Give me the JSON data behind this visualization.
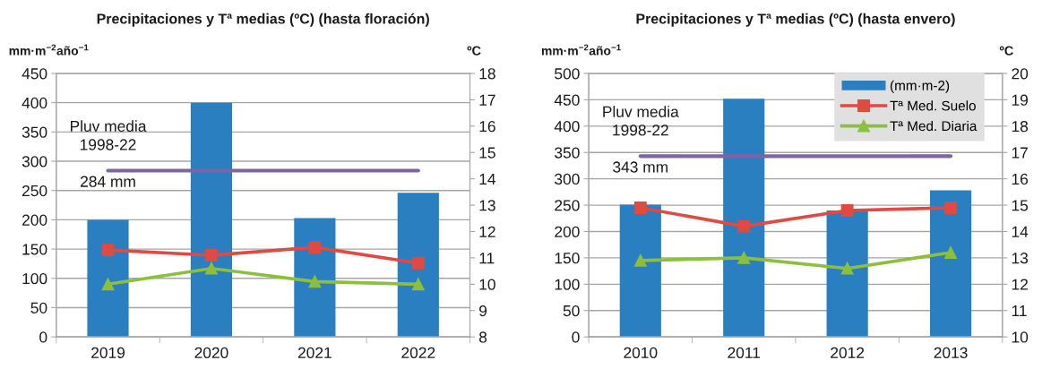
{
  "chart_data": [
    {
      "type": "bar",
      "title": "Precipitaciones y Tª medias (ºC) (hasta floración)",
      "ylabel": "mm·m$^{−2}$año$^{−1}$",
      "y2label": "ºC",
      "categories": [
        "2019",
        "2020",
        "2021",
        "2022"
      ],
      "series": [
        {
          "color": "#2a7fc1",
          "values": [
            200,
            400,
            203,
            246
          ]
        },
        {
          "type": "line",
          "axis": "y2",
          "marker": "square",
          "color": "#df4a43",
          "values": [
            11.3,
            11.1,
            11.4,
            10.8
          ]
        },
        {
          "type": "line",
          "axis": "y2",
          "marker": "triangle",
          "color": "#8cbf3e",
          "values": [
            10.0,
            10.6,
            10.1,
            10.0
          ]
        }
      ],
      "ylim": [
        0,
        450
      ],
      "yticks": [
        0,
        50,
        100,
        150,
        200,
        250,
        300,
        350,
        400,
        450
      ],
      "y2lim": [
        8,
        18
      ],
      "y2ticks": [
        8,
        9,
        10,
        11,
        12,
        13,
        14,
        15,
        16,
        17,
        18
      ],
      "ref_lines": [
        {
          "axis": "y",
          "value": 284,
          "label": "284 mm",
          "color": "#8064a2"
        }
      ],
      "annotations": [
        {
          "text": "Pluv media\n1998-22",
          "x": "2019",
          "y": 284
        }
      ],
      "grid": "y",
      "legend": false
    },
    {
      "type": "bar",
      "title": "Precipitaciones y Tª medias (ºC) (hasta envero)",
      "ylabel": "mm·m$^{−2}$año$^{−1}$",
      "y2label": "ºC",
      "categories": [
        "2010",
        "2011",
        "2012",
        "2013"
      ],
      "series": [
        {
          "name": "(mm·m-2)",
          "color": "#2a7fc1",
          "values": [
            251,
            452,
            240,
            278
          ]
        },
        {
          "type": "line",
          "axis": "y2",
          "marker": "square",
          "name": "Tª Med. Suelo",
          "color": "#df4a43",
          "values": [
            14.9,
            14.2,
            14.8,
            14.9
          ]
        },
        {
          "type": "line",
          "axis": "y2",
          "marker": "triangle",
          "name": "Tª Med. Diaria",
          "color": "#8cbf3e",
          "values": [
            12.9,
            13.0,
            12.6,
            13.2
          ]
        }
      ],
      "ylim": [
        0,
        500
      ],
      "yticks": [
        0,
        50,
        100,
        150,
        200,
        250,
        300,
        350,
        400,
        450,
        500
      ],
      "y2lim": [
        10,
        20
      ],
      "y2ticks": [
        10,
        11,
        12,
        13,
        14,
        15,
        16,
        17,
        18,
        19,
        20
      ],
      "ref_lines": [
        {
          "axis": "y",
          "value": 343,
          "label": "343 mm",
          "color": "#8064a2"
        }
      ],
      "annotations": [
        {
          "text": "Pluv media\n1998-22",
          "x": "2010",
          "y": 343
        }
      ],
      "grid": "y",
      "legend": "top right"
    }
  ]
}
